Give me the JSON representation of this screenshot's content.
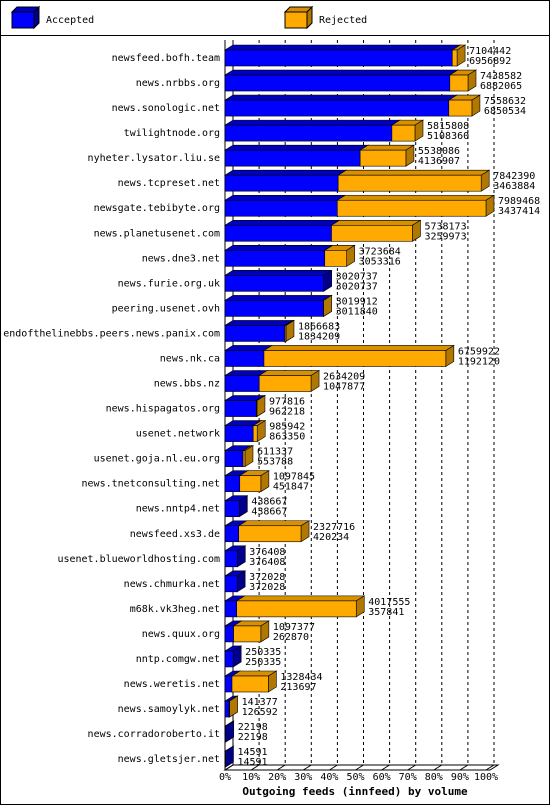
{
  "chart_data": {
    "type": "bar3d",
    "orientation": "horizontal",
    "stacked": true,
    "xlabel": "Outgoing feeds (innfeed) by volume",
    "categories": [
      "newsfeed.bofh.team",
      "news.nrbbs.org",
      "news.sonologic.net",
      "twilightnode.org",
      "nyheter.lysator.liu.se",
      "news.tcpreset.net",
      "newsgate.tebibyte.org",
      "news.planetusenet.com",
      "news.dne3.net",
      "news.furie.org.uk",
      "peering.usenet.ovh",
      "endofthelinebbs.peers.news.panix.com",
      "news.nk.ca",
      "news.bbs.nz",
      "news.hispagatos.org",
      "usenet.network",
      "usenet.goja.nl.eu.org",
      "news.tnetconsulting.net",
      "news.nntp4.net",
      "newsfeed.xs3.de",
      "usenet.blueworldhosting.com",
      "news.chmurka.net",
      "m68k.vk3heg.net",
      "news.quux.org",
      "nntp.comgw.net",
      "news.weretis.net",
      "news.samoylyk.net",
      "news.corradoroberto.it",
      "news.gletsjer.net"
    ],
    "totals": [
      7104442,
      7438582,
      7558632,
      5815808,
      5538086,
      7842390,
      7989468,
      5738173,
      3723684,
      3020737,
      3019912,
      1866683,
      6759922,
      2634209,
      977816,
      985942,
      611337,
      1097845,
      438667,
      2327716,
      376408,
      372028,
      4017555,
      1097377,
      250335,
      1328434,
      141377,
      22198,
      14591
    ],
    "series": [
      {
        "name": "Accepted",
        "color": "#0000ff",
        "side": "#00008b",
        "top": "#0000c0",
        "values": [
          6956892,
          6882065,
          6850534,
          5108360,
          4136907,
          3463884,
          3437414,
          3259973,
          3053316,
          3020737,
          3011840,
          1834209,
          1192120,
          1047877,
          962218,
          863350,
          553788,
          451847,
          438667,
          420234,
          376408,
          372028,
          357841,
          262870,
          250335,
          213697,
          126592,
          22198,
          14591
        ]
      },
      {
        "name": "Rejected",
        "color": "#ffaa00",
        "side": "#b07800",
        "top": "#d89000",
        "values": [
          147550,
          556517,
          708098,
          707448,
          1401179,
          4378506,
          4552054,
          2478200,
          670368,
          0,
          8072,
          32474,
          5567802,
          1586332,
          15598,
          122592,
          57549,
          645998,
          0,
          1907482,
          0,
          0,
          3659714,
          834507,
          0,
          1114737,
          14785,
          0,
          0
        ]
      }
    ],
    "xlim": [
      0,
      7989468
    ],
    "xticks": [
      {
        "value": 0,
        "label": "0%"
      },
      {
        "value": 798946.8,
        "label": "10%"
      },
      {
        "value": 1597893.6,
        "label": "20%"
      },
      {
        "value": 2396840.4,
        "label": "30%"
      },
      {
        "value": 3195787.2,
        "label": "40%"
      },
      {
        "value": 3994734,
        "label": "50%"
      },
      {
        "value": 4793680.8,
        "label": "60%"
      },
      {
        "value": 5592627.6,
        "label": "70%"
      },
      {
        "value": 6391574.4,
        "label": "80%"
      },
      {
        "value": 7190521.2,
        "label": "90%"
      },
      {
        "value": 7989468,
        "label": "100%"
      }
    ],
    "grid": true
  }
}
